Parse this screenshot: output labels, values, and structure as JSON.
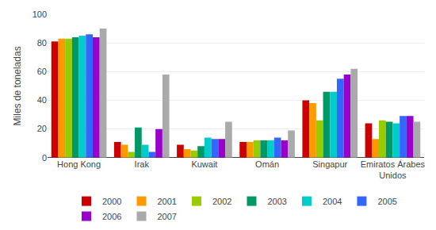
{
  "chart_data": {
    "type": "bar",
    "ylabel": "Miles de toneladas",
    "categories": [
      "Hong Kong",
      "Irak",
      "Kuwait",
      "Omán",
      "Singapur",
      "Emiratos Árabes\nUnidos"
    ],
    "series": [
      {
        "name": "2000",
        "color": "#cc0000",
        "values": [
          81,
          11,
          9,
          11,
          40,
          24
        ]
      },
      {
        "name": "2001",
        "color": "#ff9900",
        "values": [
          83,
          9,
          6,
          11,
          38,
          13
        ]
      },
      {
        "name": "2002",
        "color": "#99cc00",
        "values": [
          83,
          4,
          5,
          12,
          26,
          26
        ]
      },
      {
        "name": "2003",
        "color": "#009966",
        "values": [
          84,
          21,
          8,
          12,
          46,
          25
        ]
      },
      {
        "name": "2004",
        "color": "#00cccc",
        "values": [
          85,
          9,
          14,
          12,
          46,
          24
        ]
      },
      {
        "name": "2005",
        "color": "#3366ff",
        "values": [
          86,
          4,
          13,
          14,
          55,
          29
        ]
      },
      {
        "name": "2006",
        "color": "#9900cc",
        "values": [
          84,
          20,
          13,
          12,
          58,
          29
        ]
      },
      {
        "name": "2007",
        "color": "#aaaaaa",
        "values": [
          90,
          58,
          25,
          19,
          62,
          25
        ]
      }
    ],
    "ylim": [
      0,
      100
    ],
    "yticks": [
      0,
      20,
      40,
      60,
      80,
      100
    ],
    "grid": true,
    "legend": "bottom"
  }
}
